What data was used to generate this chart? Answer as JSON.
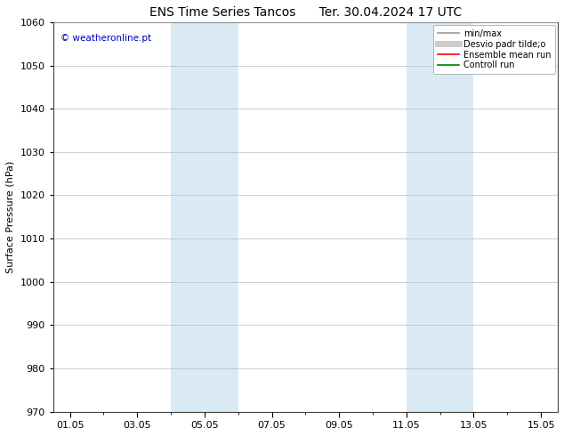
{
  "title1": "ENS Time Series Tancos",
  "title2": "Ter. 30.04.2024 17 UTC",
  "ylabel": "Surface Pressure (hPa)",
  "ylim": [
    970,
    1060
  ],
  "yticks": [
    970,
    980,
    990,
    1000,
    1010,
    1020,
    1030,
    1040,
    1050,
    1060
  ],
  "xtick_labels": [
    "01.05",
    "03.05",
    "05.05",
    "07.05",
    "09.05",
    "11.05",
    "13.05",
    "15.05"
  ],
  "xtick_positions": [
    1,
    3,
    5,
    7,
    9,
    11,
    13,
    15
  ],
  "xlim": [
    0.5,
    15.5
  ],
  "shaded_bands": [
    {
      "x_start": 4.0,
      "x_end": 6.0
    },
    {
      "x_start": 11.0,
      "x_end": 13.0
    }
  ],
  "shaded_color": "#daeaf5",
  "background_color": "#ffffff",
  "watermark": "© weatheronline.pt",
  "watermark_color": "#0000bb",
  "legend_items": [
    {
      "label": "min/max",
      "color": "#999999",
      "lw": 1.2,
      "ls": "-"
    },
    {
      "label": "Desvio padr tilde;o",
      "color": "#cccccc",
      "lw": 5,
      "ls": "-"
    },
    {
      "label": "Ensemble mean run",
      "color": "#ff0000",
      "lw": 1.2,
      "ls": "-"
    },
    {
      "label": "Controll run",
      "color": "#008000",
      "lw": 1.2,
      "ls": "-"
    }
  ],
  "grid_color": "#bbbbbb",
  "grid_lw": 0.5,
  "tick_fontsize": 8,
  "title_fontsize": 10,
  "ylabel_fontsize": 8,
  "legend_fontsize": 7
}
